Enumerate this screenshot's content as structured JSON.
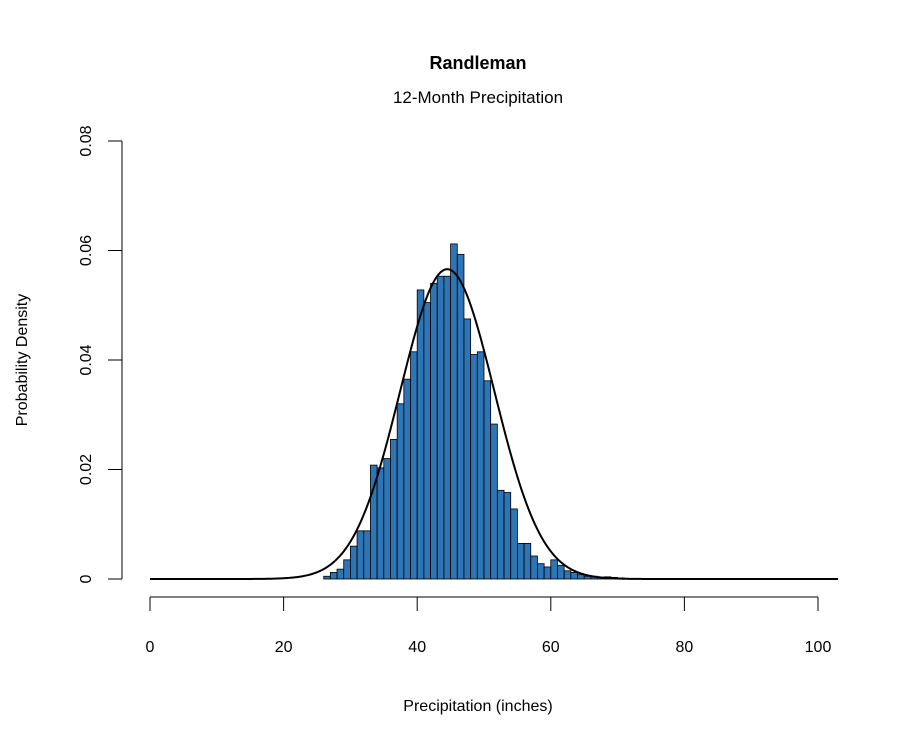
{
  "chart_data": {
    "type": "bar",
    "title": "Randleman",
    "subtitle": "12-Month Precipitation",
    "xlabel": "Precipitation (inches)",
    "ylabel": "Probability Density",
    "xlim": [
      0,
      103
    ],
    "ylim": [
      0,
      0.08
    ],
    "x_ticks": [
      0,
      20,
      40,
      60,
      80,
      100
    ],
    "x_tick_labels": [
      "0",
      "20",
      "40",
      "60",
      "80",
      "100"
    ],
    "y_ticks": [
      0,
      0.02,
      0.04,
      0.06,
      0.08
    ],
    "y_tick_labels": [
      "0",
      "0.02",
      "0.04",
      "0.06",
      "0.08"
    ],
    "grid": false,
    "legend": "none",
    "bin_width": 1,
    "bin_starts": [
      26,
      27,
      28,
      29,
      30,
      31,
      32,
      33,
      34,
      35,
      36,
      37,
      38,
      39,
      40,
      41,
      42,
      43,
      44,
      45,
      46,
      47,
      48,
      49,
      50,
      51,
      52,
      53,
      54,
      55,
      56,
      57,
      58,
      59,
      60,
      61,
      62,
      63,
      64,
      65,
      66,
      67,
      68,
      69,
      70,
      71,
      72,
      73,
      74,
      75
    ],
    "densities": [
      0.0005,
      0.0012,
      0.0018,
      0.0035,
      0.006,
      0.0088,
      0.0088,
      0.0208,
      0.0203,
      0.022,
      0.0255,
      0.032,
      0.0365,
      0.0415,
      0.0528,
      0.0505,
      0.054,
      0.0553,
      0.0553,
      0.0612,
      0.0593,
      0.0475,
      0.041,
      0.0415,
      0.0362,
      0.0283,
      0.0162,
      0.0158,
      0.0128,
      0.0065,
      0.0065,
      0.0042,
      0.0028,
      0.0022,
      0.0035,
      0.0025,
      0.0015,
      0.0012,
      0.0008,
      0.0005,
      0.0005,
      0.0003,
      0.0004,
      0.0003,
      0.0002,
      0.0001,
      0.0001,
      0.0001,
      0.0001,
      0.0001
    ],
    "curve": {
      "type": "normal-density",
      "mean": 44.5,
      "sd": 7.05,
      "x_range": [
        0,
        103
      ]
    },
    "bar_color": "#2e75b6",
    "bar_edge_color": "#000000",
    "curve_color": "#000000"
  }
}
